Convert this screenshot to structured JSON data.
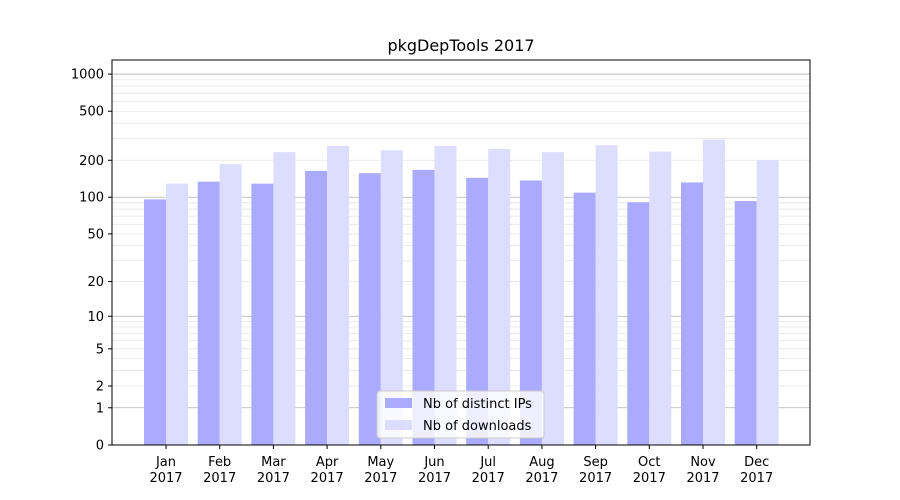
{
  "chart_data": {
    "type": "bar",
    "title": "pkgDepTools 2017",
    "xlabel": "",
    "ylabel": "",
    "yscale": "log1p",
    "ylim": [
      0,
      1300
    ],
    "yticks": [
      0,
      1,
      2,
      5,
      10,
      20,
      50,
      100,
      200,
      500,
      1000
    ],
    "grid": true,
    "legend_position": "bottom-center",
    "categories": [
      [
        "Jan",
        "2017"
      ],
      [
        "Feb",
        "2017"
      ],
      [
        "Mar",
        "2017"
      ],
      [
        "Apr",
        "2017"
      ],
      [
        "May",
        "2017"
      ],
      [
        "Jun",
        "2017"
      ],
      [
        "Jul",
        "2017"
      ],
      [
        "Aug",
        "2017"
      ],
      [
        "Sep",
        "2017"
      ],
      [
        "Oct",
        "2017"
      ],
      [
        "Nov",
        "2017"
      ],
      [
        "Dec",
        "2017"
      ]
    ],
    "series": [
      {
        "name": "Nb of distinct IPs",
        "color": "#aaaaff",
        "values": [
          96,
          134,
          129,
          164,
          157,
          167,
          144,
          137,
          109,
          91,
          132,
          93
        ]
      },
      {
        "name": "Nb of downloads",
        "color": "#ddddff",
        "values": [
          129,
          186,
          233,
          262,
          241,
          262,
          247,
          233,
          265,
          235,
          295,
          201
        ]
      }
    ]
  }
}
